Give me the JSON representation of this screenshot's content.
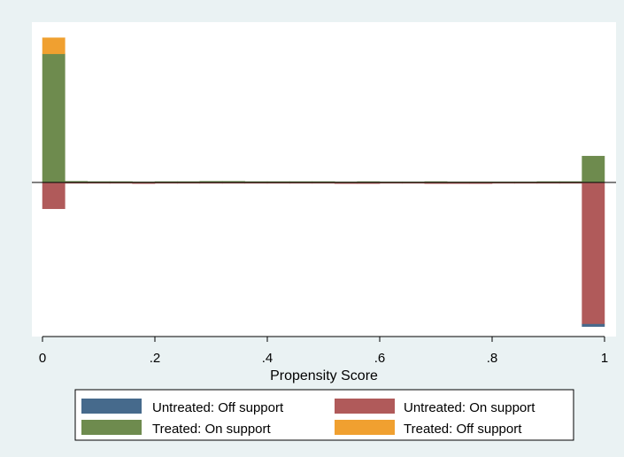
{
  "chart_data": {
    "type": "bar",
    "subtype": "mirrored-histogram",
    "xlabel": "Propensity Score",
    "xlim": [
      0,
      1
    ],
    "xticks": [
      "0",
      ".2",
      ".4",
      ".6",
      ".8",
      "1"
    ],
    "xtick_values": [
      0,
      0.2,
      0.4,
      0.6,
      0.8,
      1
    ],
    "bin_width": 0.04,
    "bins_start": [
      0,
      0.04,
      0.08,
      0.12,
      0.16,
      0.2,
      0.24,
      0.28,
      0.32,
      0.36,
      0.4,
      0.44,
      0.48,
      0.52,
      0.56,
      0.6,
      0.64,
      0.68,
      0.72,
      0.76,
      0.8,
      0.84,
      0.88,
      0.92,
      0.96
    ],
    "ylim": [
      -5.0,
      5.0
    ],
    "yticks_visible": false,
    "grid": false,
    "zero_line": true,
    "series": [
      {
        "name": "Treated: On support",
        "direction": "up",
        "color": "#6e8b4e",
        "values": [
          4.4,
          0.04,
          0.03,
          0.03,
          0.02,
          0.03,
          0.03,
          0.04,
          0.04,
          0.03,
          0.03,
          0.03,
          0.03,
          0.02,
          0.03,
          0.02,
          0.02,
          0.03,
          0.02,
          0.02,
          0.02,
          0.02,
          0.03,
          0.03,
          0.9
        ]
      },
      {
        "name": "Treated: Off support",
        "direction": "up",
        "color": "#f0a030",
        "values": [
          0.55,
          0,
          0,
          0,
          0,
          0,
          0,
          0,
          0,
          0,
          0,
          0,
          0,
          0,
          0,
          0,
          0,
          0,
          0,
          0,
          0,
          0,
          0,
          0,
          0
        ]
      },
      {
        "name": "Untreated: On support",
        "direction": "down",
        "color": "#b05a5a",
        "values": [
          0.9,
          0.03,
          0.03,
          0.03,
          0.04,
          0.03,
          0.03,
          0.03,
          0.03,
          0.03,
          0.03,
          0.03,
          0.03,
          0.04,
          0.04,
          0.03,
          0.03,
          0.04,
          0.04,
          0.04,
          0.03,
          0.03,
          0.03,
          0.03,
          4.85
        ]
      },
      {
        "name": "Untreated: Off support",
        "direction": "down",
        "color": "#466a8c",
        "values": [
          0,
          0,
          0,
          0,
          0,
          0,
          0,
          0,
          0,
          0,
          0,
          0,
          0,
          0,
          0,
          0,
          0,
          0,
          0,
          0,
          0,
          0,
          0,
          0,
          0.08
        ]
      }
    ],
    "legend": {
      "placement": "bottom",
      "entries": [
        {
          "label": "Untreated: Off support",
          "color": "#466a8c"
        },
        {
          "label": "Untreated: On support",
          "color": "#b05a5a"
        },
        {
          "label": "Treated: On support",
          "color": "#6e8b4e"
        },
        {
          "label": "Treated: Off support",
          "color": "#f0a030"
        }
      ]
    },
    "colors": {
      "background": "#eaf2f3",
      "plot_background": "#ffffff",
      "axis": "#000000"
    }
  }
}
